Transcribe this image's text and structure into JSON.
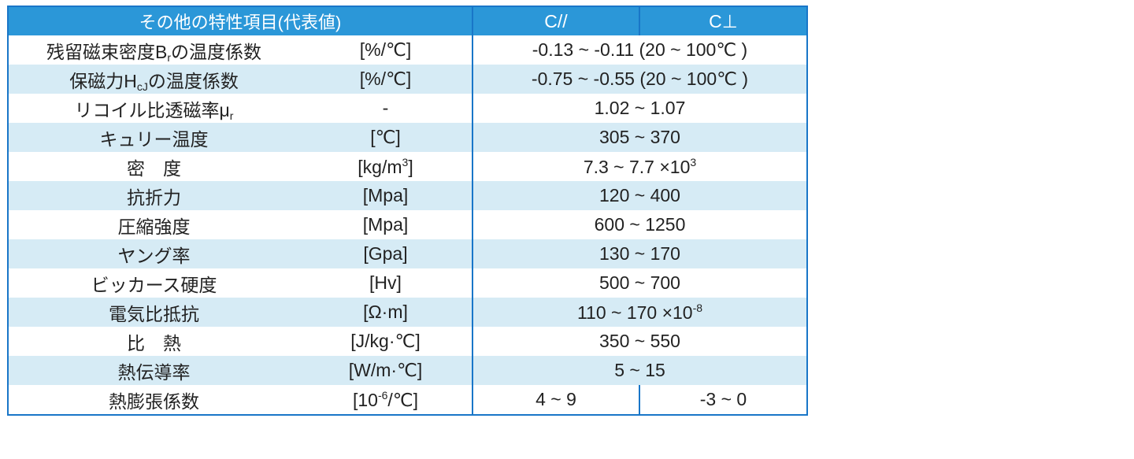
{
  "header": {
    "property": "その他の特性項目(代表値)",
    "c_parallel": "C//",
    "c_perp": "C⊥"
  },
  "rows": [
    {
      "name": "残留磁束密度B",
      "name_sub": "r",
      "name_after": "の温度係数",
      "unit": "[%/℃]",
      "value": "-0.13 ~ -0.11 (20 ~ 100℃ )"
    },
    {
      "name": "保磁力H",
      "name_sub": "cJ",
      "name_after": "の温度係数",
      "unit": "[%/℃]",
      "value": "-0.75 ~ -0.55 (20 ~ 100℃ )"
    },
    {
      "name": "リコイル比透磁率μ",
      "name_sub": "r",
      "name_after": "",
      "unit": "-",
      "value": "1.02 ~ 1.07"
    },
    {
      "name": "キュリー温度",
      "unit": "[℃]",
      "value": "305 ~ 370"
    },
    {
      "name": "密　度",
      "unit": "[kg/m",
      "unit_sup": "3",
      "unit_after": "]",
      "value": "7.3 ~ 7.7 ×10",
      "value_sup": "3"
    },
    {
      "name": "抗折力",
      "unit": "[Mpa]",
      "value": "120 ~ 400"
    },
    {
      "name": "圧縮強度",
      "unit": "[Mpa]",
      "value": "600 ~ 1250"
    },
    {
      "name": "ヤング率",
      "unit": "[Gpa]",
      "value": "130 ~ 170"
    },
    {
      "name": "ビッカース硬度",
      "unit": "[Hv]",
      "value": "500 ~ 700"
    },
    {
      "name": "電気比抵抗",
      "unit": "[Ω·m]",
      "value": "110 ~ 170 ×10",
      "value_sup": "-8"
    },
    {
      "name": "比　熱",
      "unit": "[J/kg·℃]",
      "value": "350 ~ 550"
    },
    {
      "name": "熱伝導率",
      "unit": "[W/m·℃]",
      "value": "5 ~ 15"
    },
    {
      "name": "熱膨張係数",
      "unit": "[10",
      "unit_sup": "-6",
      "unit_after": "/℃]",
      "value_parallel": "4 ~ 9",
      "value_perp": "-3 ~ 0"
    }
  ],
  "colors": {
    "header_bg": "#2b97d8",
    "stripe": "#d6ebf5",
    "border": "#1976c8"
  }
}
